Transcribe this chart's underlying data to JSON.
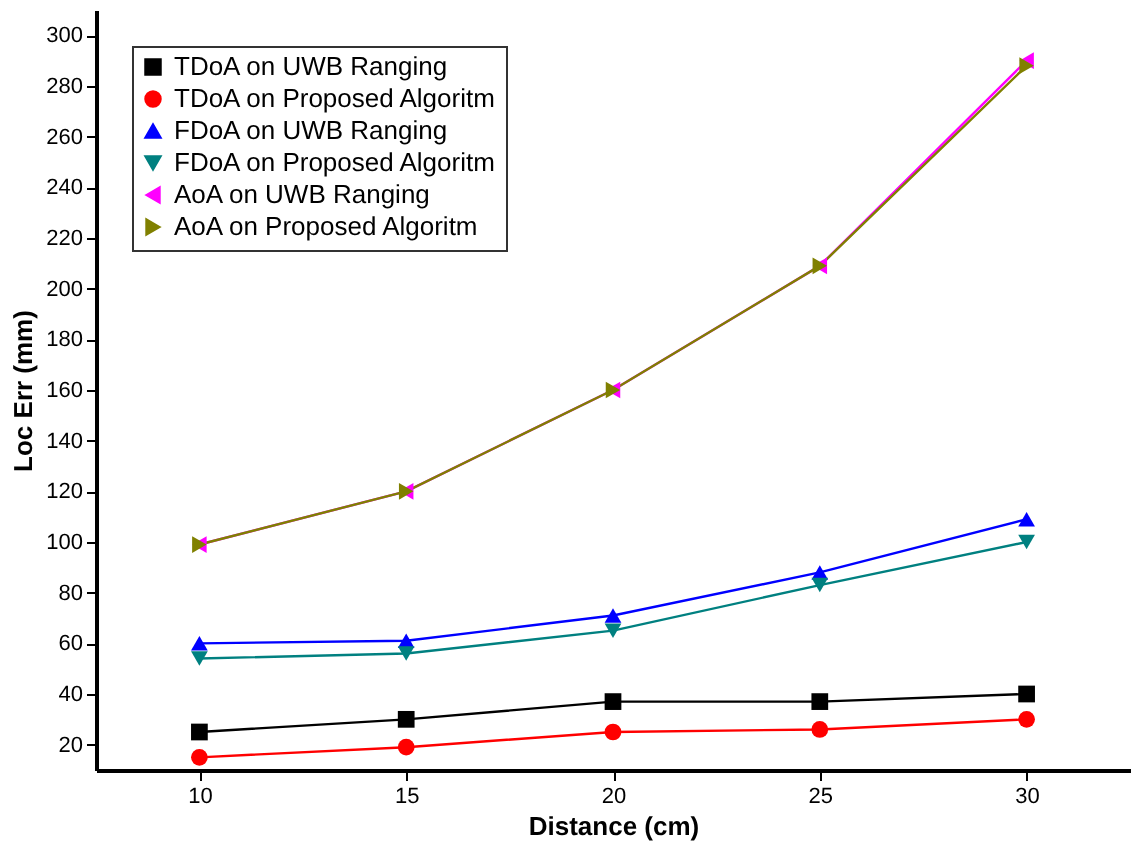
{
  "chart_data": {
    "type": "line",
    "xlabel": "Distance (cm)",
    "ylabel": "Loc Err (mm)",
    "x": [
      10,
      15,
      20,
      25,
      30
    ],
    "xlim": [
      7.5,
      32.5
    ],
    "xticks": [
      10,
      15,
      20,
      25,
      30
    ],
    "ylim": [
      10,
      310
    ],
    "yticks": [
      20,
      40,
      60,
      80,
      100,
      120,
      140,
      160,
      180,
      200,
      220,
      240,
      260,
      280,
      300
    ],
    "grid": false,
    "legend": "top left",
    "line_style": "solid",
    "series": [
      {
        "name": "TDoA on UWB Ranging",
        "color": "#000000",
        "marker": "square",
        "values": [
          25,
          30,
          37,
          37,
          40
        ]
      },
      {
        "name": "TDoA on Proposed Algoritm",
        "color": "#ff0000",
        "marker": "circle",
        "values": [
          15,
          19,
          25,
          26,
          30
        ]
      },
      {
        "name": "FDoA on UWB Ranging",
        "color": "#0000ff",
        "marker": "triangle",
        "values": [
          60,
          61,
          71,
          88,
          109
        ]
      },
      {
        "name": "FDoA on Proposed Algoritm",
        "color": "#008080",
        "marker": "triangle-down",
        "values": [
          54,
          56,
          65,
          83,
          100
        ]
      },
      {
        "name": "AoA on UWB Ranging",
        "color": "#ff00ff",
        "marker": "triangle-left",
        "values": [
          99,
          120,
          160,
          209,
          290
        ]
      },
      {
        "name": "AoA on Proposed Algoritm",
        "color": "#808000",
        "marker": "triangle-right",
        "values": [
          99,
          120,
          160,
          209,
          288
        ]
      }
    ]
  }
}
